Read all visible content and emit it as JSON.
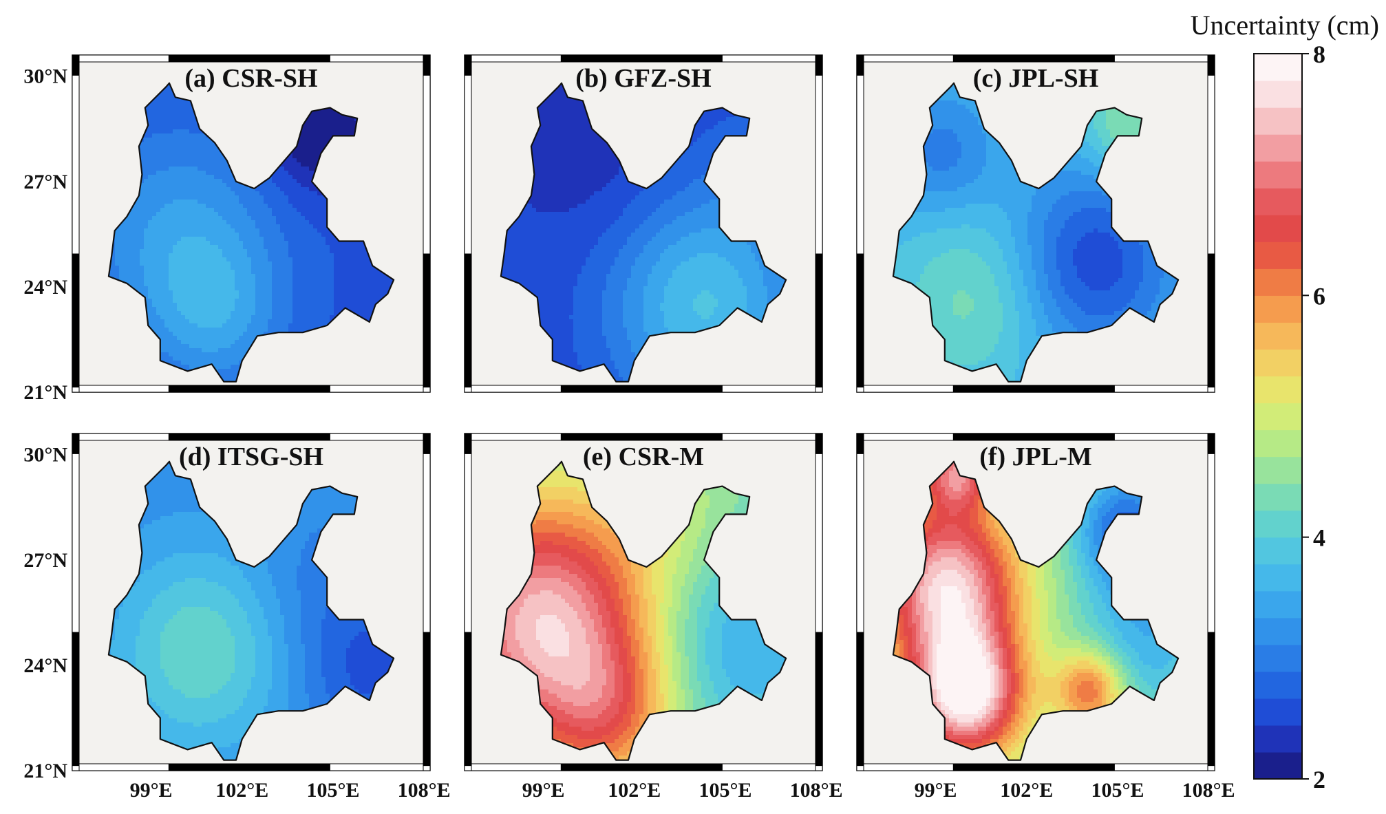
{
  "colorbar": {
    "title": "Uncertainty (cm)",
    "min": 2,
    "max": 8,
    "ticks": [
      {
        "value": 8,
        "label": "8"
      },
      {
        "value": 6,
        "label": "6"
      },
      {
        "value": 4,
        "label": "4"
      },
      {
        "value": 2,
        "label": "2"
      }
    ],
    "colors": [
      "#1a1f8c",
      "#1f33b8",
      "#1f4dd6",
      "#2266e0",
      "#2a7de6",
      "#3192ea",
      "#3aa6ec",
      "#45b8ea",
      "#52c6e0",
      "#62d2cd",
      "#7adbb5",
      "#98e39c",
      "#b6ea86",
      "#d2ec78",
      "#e8e46c",
      "#f2d064",
      "#f6b85a",
      "#f59c4e",
      "#ef7c45",
      "#e85a44",
      "#e24a4a",
      "#e65a5e",
      "#ed7a7e",
      "#f29ea2",
      "#f6c2c4",
      "#fae0e2",
      "#fdf4f5"
    ]
  },
  "lat_ticks": [
    {
      "value": 30,
      "label": "30°N"
    },
    {
      "value": 27,
      "label": "27°N"
    },
    {
      "value": 24,
      "label": "24°N"
    },
    {
      "value": 21,
      "label": "21°N"
    }
  ],
  "lon_ticks": [
    {
      "value": 99,
      "label": "99°E"
    },
    {
      "value": 102,
      "label": "102°E"
    },
    {
      "value": 105,
      "label": "105°E"
    },
    {
      "value": 108,
      "label": "108°E"
    }
  ],
  "panels": [
    {
      "title": "(a) CSR-SH",
      "base": 2.6,
      "blobs": [
        {
          "lon": 100.0,
          "lat": 25.3,
          "value": 3.4,
          "r": 2.2
        },
        {
          "lon": 104.5,
          "lat": 28.4,
          "value": 1.9,
          "r": 1.2
        },
        {
          "lon": 101.2,
          "lat": 23.2,
          "value": 3.2,
          "r": 1.5
        }
      ]
    },
    {
      "title": "(b) GFZ-SH",
      "base": 2.5,
      "blobs": [
        {
          "lon": 104.3,
          "lat": 23.5,
          "value": 3.8,
          "r": 2.2
        },
        {
          "lon": 100.8,
          "lat": 27.5,
          "value": 2.3,
          "r": 1.8
        },
        {
          "lon": 106.0,
          "lat": 27.4,
          "value": 2.8,
          "r": 1.2
        }
      ]
    },
    {
      "title": "(c) JPL-SH",
      "base": 3.6,
      "blobs": [
        {
          "lon": 104.2,
          "lat": 24.7,
          "value": 2.5,
          "r": 1.8
        },
        {
          "lon": 100.2,
          "lat": 23.6,
          "value": 4.3,
          "r": 1.8
        },
        {
          "lon": 105.3,
          "lat": 28.6,
          "value": 4.5,
          "r": 1.0
        },
        {
          "lon": 99.2,
          "lat": 27.8,
          "value": 3.0,
          "r": 1.2
        }
      ]
    },
    {
      "title": "(d) ITSG-SH",
      "base": 3.2,
      "blobs": [
        {
          "lon": 100.6,
          "lat": 24.4,
          "value": 4.2,
          "r": 2.0
        },
        {
          "lon": 106.2,
          "lat": 23.9,
          "value": 2.6,
          "r": 1.6
        },
        {
          "lon": 104.3,
          "lat": 26.2,
          "value": 3.0,
          "r": 1.5
        }
      ]
    },
    {
      "title": "(e) CSR-M",
      "base": 4.4,
      "blobs": [
        {
          "lon": 99.0,
          "lat": 25.2,
          "value": 7.5,
          "r": 2.5
        },
        {
          "lon": 101.2,
          "lat": 22.6,
          "value": 5.6,
          "r": 1.5
        },
        {
          "lon": 105.5,
          "lat": 24.6,
          "value": 3.5,
          "r": 2.0
        },
        {
          "lon": 103.0,
          "lat": 28.4,
          "value": 4.8,
          "r": 1.5
        }
      ]
    },
    {
      "title": "(f) JPL-M",
      "base": 4.6,
      "blobs": [
        {
          "lon": 100.0,
          "lat": 23.2,
          "value": 8.0,
          "r": 1.3
        },
        {
          "lon": 99.4,
          "lat": 26.3,
          "value": 7.6,
          "r": 1.6
        },
        {
          "lon": 104.1,
          "lat": 23.3,
          "value": 6.4,
          "r": 0.8
        },
        {
          "lon": 105.3,
          "lat": 27.9,
          "value": 2.8,
          "r": 1.2
        },
        {
          "lon": 99.7,
          "lat": 29.5,
          "value": 6.8,
          "r": 0.8
        },
        {
          "lon": 106.0,
          "lat": 24.8,
          "value": 3.6,
          "r": 1.6
        }
      ]
    }
  ]
}
